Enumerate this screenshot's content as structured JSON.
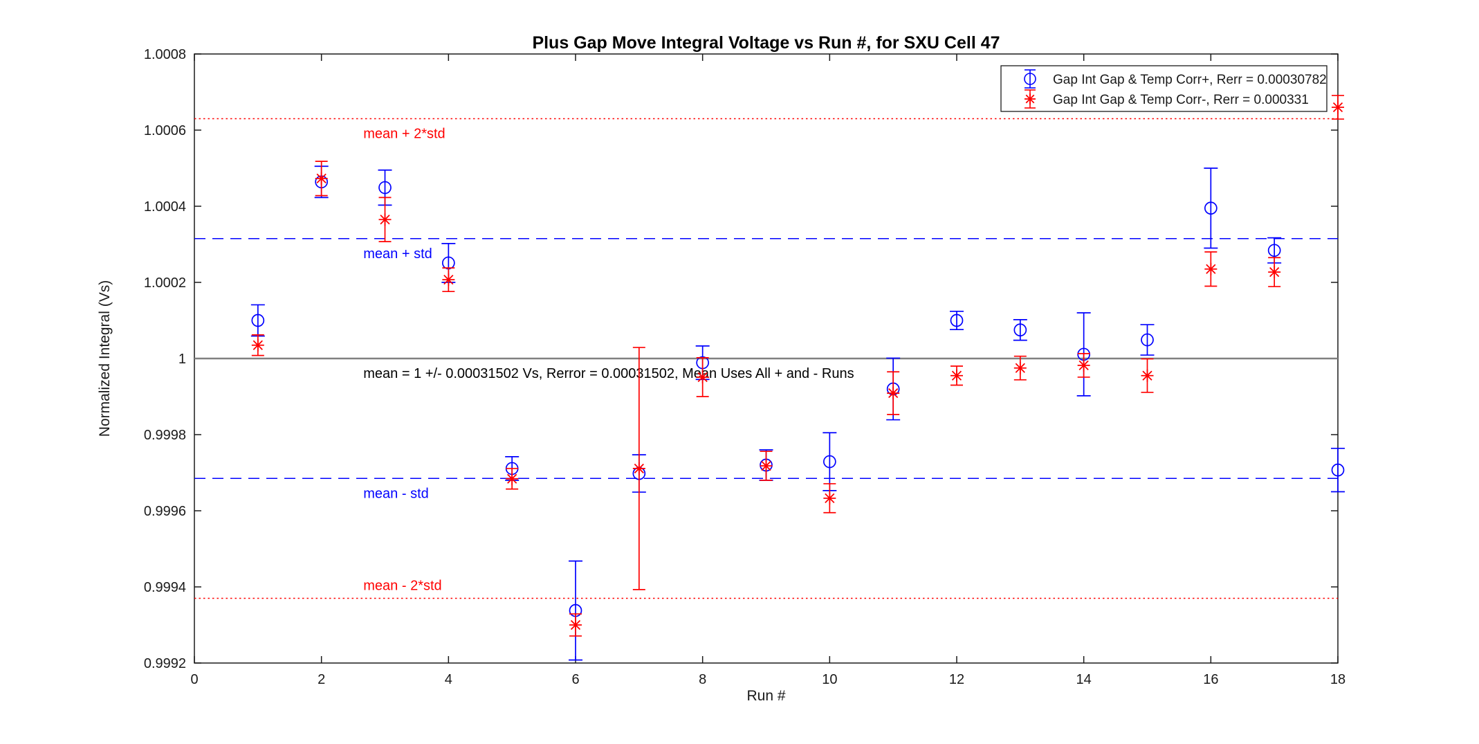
{
  "chart_data": {
    "type": "scatter",
    "title": "Plus Gap Move Integral Voltage vs Run #, for SXU Cell 47",
    "xlabel": "Run #",
    "ylabel": "Normalized Integral (Vs)",
    "xlim": [
      0,
      18
    ],
    "ylim": [
      0.9992,
      1.0008
    ],
    "grid": false,
    "legend_position": "top-right",
    "xticks": [
      0,
      2,
      4,
      6,
      8,
      10,
      12,
      14,
      16,
      18
    ],
    "xtick_labels": [
      "0",
      "2",
      "4",
      "6",
      "8",
      "10",
      "12",
      "14",
      "16",
      "18"
    ],
    "yticks": [
      1.0008,
      1.0006,
      1.0004,
      1.0002,
      1.0,
      0.9998,
      0.9996,
      0.9994,
      0.9992
    ],
    "ytick_labels": [
      "1.0008",
      "1.0006",
      "1.0004",
      "1.0002",
      "1",
      "0.9998",
      "0.9996",
      "0.9994",
      "0.9992"
    ],
    "x": [
      1,
      2,
      3,
      4,
      5,
      6,
      7,
      8,
      9,
      10,
      11,
      12,
      13,
      14,
      15,
      16,
      17,
      18
    ],
    "series": [
      {
        "id": "gap-corr-plus",
        "name": "Gap Int Gap & Temp Corr+, Rerr = 0.00030782",
        "marker": "circle",
        "color": "#0000ff",
        "cap_halfwidth": 10,
        "values": [
          1.0001,
          1.000464,
          1.000449,
          1.000251,
          0.999711,
          0.999338,
          0.999698,
          0.999989,
          0.99972,
          0.999729,
          0.99992,
          1.0001,
          1.000075,
          1.000011,
          1.000049,
          1.000395,
          1.000284,
          0.999707
        ],
        "errors": [
          4.1e-05,
          4.1e-05,
          4.6e-05,
          5.1e-05,
          3.1e-05,
          0.00013,
          4.9e-05,
          4.4e-05,
          4e-05,
          7.6e-05,
          8.1e-05,
          2.4e-05,
          2.7e-05,
          0.000109,
          4e-05,
          0.000105,
          3.3e-05,
          5.7e-05
        ]
      },
      {
        "id": "gap-corr-minus",
        "name": "Gap Int Gap & Temp  Corr-, Rerr = 0.000331",
        "marker": "asterisk",
        "color": "#ff0000",
        "cap_halfwidth": 9,
        "values": [
          1.000035,
          1.000473,
          1.000365,
          1.000207,
          0.999684,
          0.9993,
          0.999711,
          0.999951,
          0.999718,
          0.999633,
          0.999909,
          0.999955,
          0.999975,
          0.999982,
          0.999955,
          1.000235,
          1.000227,
          1.00066
        ],
        "errors": [
          2.7e-05,
          4.5e-05,
          5.8e-05,
          3.1e-05,
          2.7e-05,
          2.9e-05,
          0.000318,
          5.1e-05,
          3.8e-05,
          3.8e-05,
          5.6e-05,
          2.5e-05,
          3.1e-05,
          3.1e-05,
          4.4e-05,
          4.5e-05,
          3.8e-05,
          3.1e-05
        ]
      }
    ],
    "reference_lines": [
      {
        "id": "mean-plus-2std",
        "label": "mean + 2*std",
        "value": 1.00063,
        "style": "dotted",
        "width": 1.5,
        "color": "#ff0000",
        "label_color": "#ff0000",
        "label_side": "below",
        "label_x": 2.66
      },
      {
        "id": "mean-plus-std",
        "label": "mean + std",
        "value": 1.000315,
        "style": "dashed",
        "width": 1.6,
        "color": "#0000ff",
        "label_color": "#0000ff",
        "label_side": "below",
        "label_x": 2.66
      },
      {
        "id": "mean",
        "label": "mean = 1 +/- 0.00031502 Vs, Rerror = 0.00031502, Mean Uses All + and - Runs",
        "value": 1.0,
        "style": "solid",
        "width": 2.5,
        "color": "#808080",
        "label_color": "#000000",
        "label_side": "below",
        "label_x": 2.66
      },
      {
        "id": "mean-minus-std",
        "label": "mean - std",
        "value": 0.999685,
        "style": "dashed",
        "width": 1.6,
        "color": "#0000ff",
        "label_color": "#0000ff",
        "label_side": "below",
        "label_x": 2.66
      },
      {
        "id": "mean-minus-2std",
        "label": "mean - 2*std",
        "value": 0.99937,
        "style": "dotted",
        "width": 1.5,
        "color": "#ff0000",
        "label_color": "#ff0000",
        "label_side": "above",
        "label_x": 2.66
      }
    ],
    "colors": {
      "axis": "#1a1a1a",
      "background": "#ffffff",
      "series_plus": "#0000ff",
      "series_minus": "#ff0000",
      "mean_line": "#808080"
    }
  }
}
